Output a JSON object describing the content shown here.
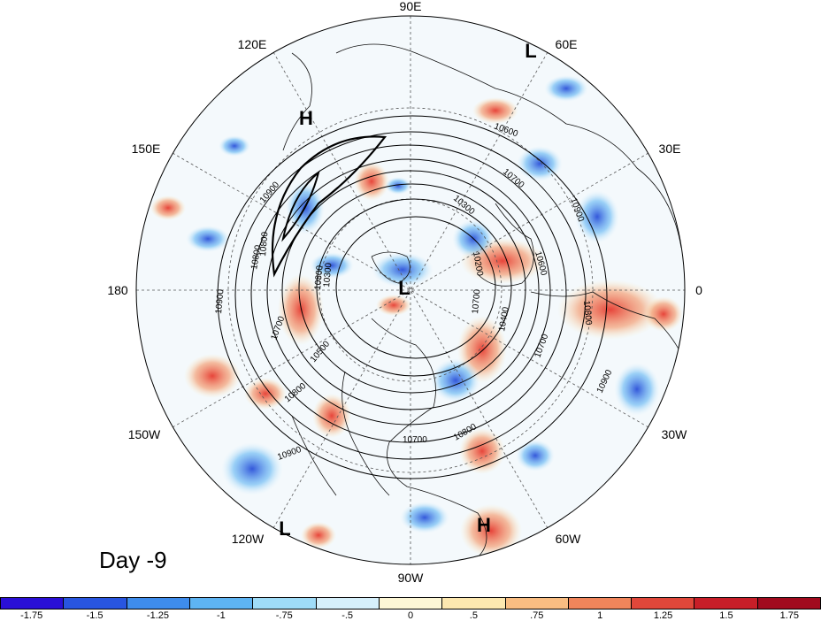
{
  "map": {
    "longitude_labels": {
      "top": "90E",
      "top_left": "120E",
      "top_right": "60E",
      "upper_left": "150E",
      "upper_right": "30E",
      "left": "180",
      "right": "0",
      "lower_left": "150W",
      "lower_right": "30W",
      "bottom_left": "120W",
      "bottom_right": "60W",
      "bottom": "90W"
    },
    "pressure_centers": [
      "L",
      "H",
      "L",
      "H",
      "L"
    ],
    "contour_labels": [
      "10900",
      "10800",
      "10700",
      "10500",
      "10300",
      "10700",
      "10800",
      "10900",
      "10900",
      "10800",
      "10700",
      "10600",
      "10400",
      "10300",
      "10200",
      "10600",
      "10800",
      "10700",
      "10900",
      "10800",
      "10900",
      "10700",
      "10800"
    ],
    "period_label": "Day -9"
  },
  "colorbar": {
    "colors": [
      "#2a0fd6",
      "#2855e0",
      "#3e8cec",
      "#5eb4f3",
      "#9fdcf8",
      "#d6f0fb",
      "#fdf7d6",
      "#fde8b0",
      "#f9bd82",
      "#f0855b",
      "#e0473a",
      "#c81e28",
      "#a10a1e"
    ],
    "ticks": [
      "-1.75",
      "-1.5",
      "-1.25",
      "-1",
      "-.75",
      "-.5",
      "0",
      ".5",
      ".75",
      "1",
      "1.25",
      "1.5",
      "1.75"
    ]
  }
}
